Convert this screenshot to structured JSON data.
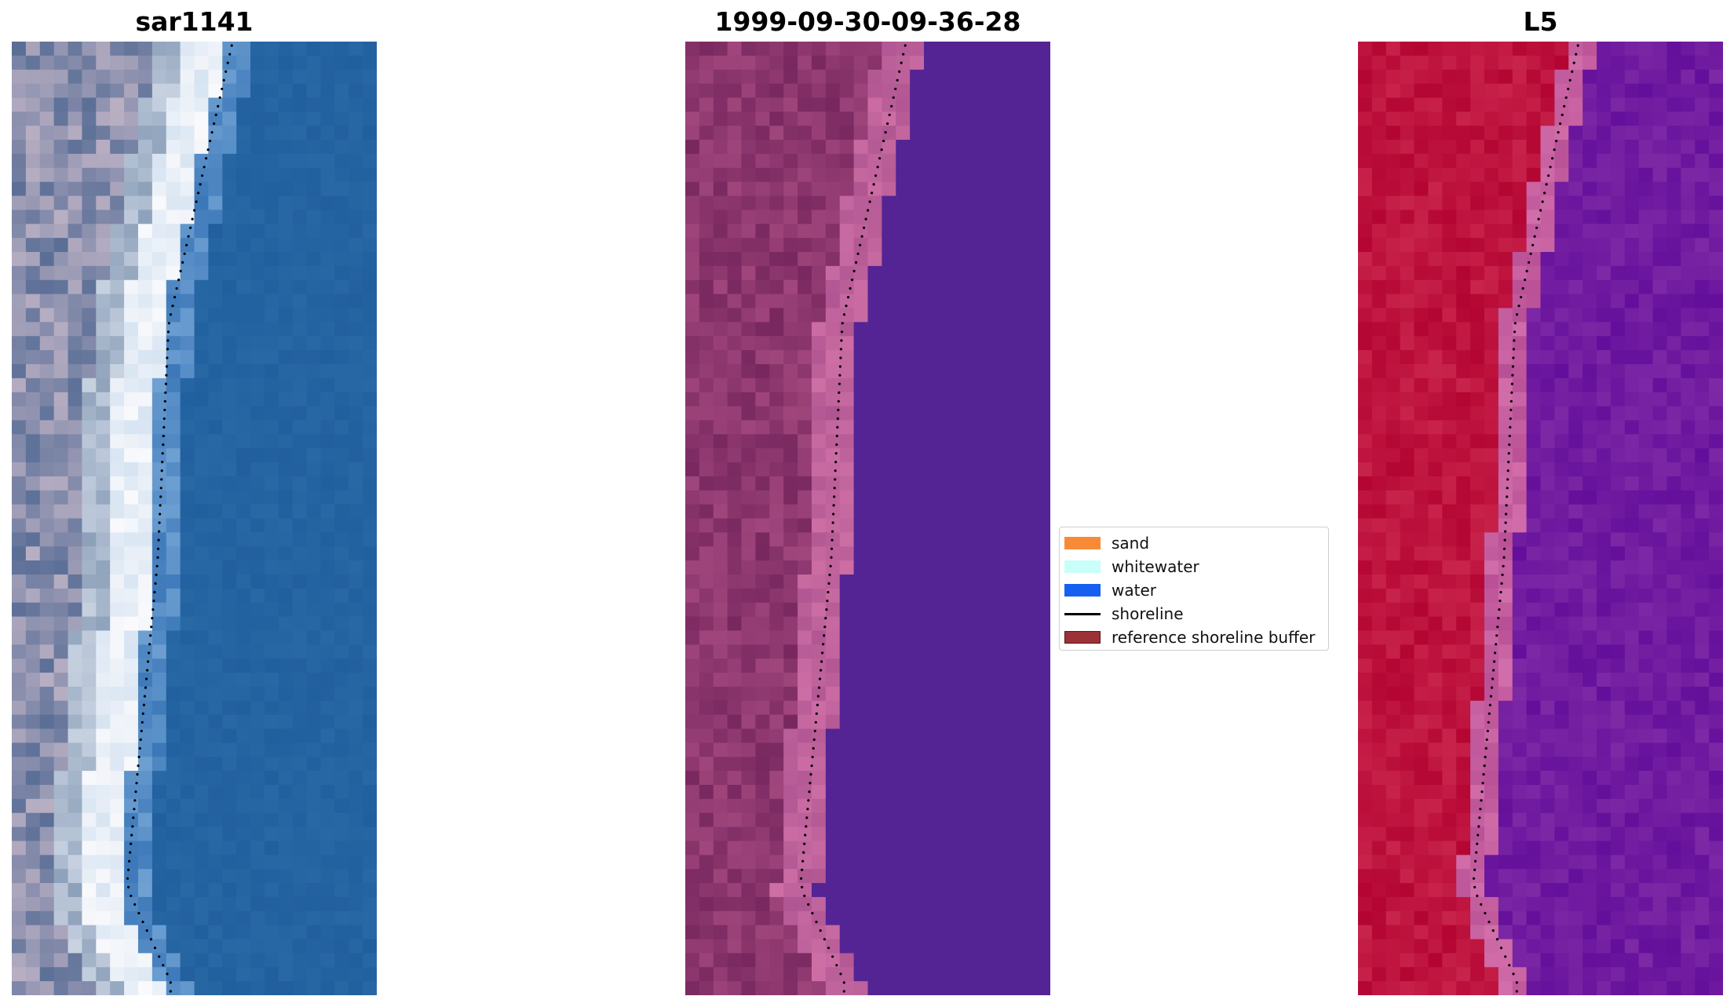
{
  "panels": [
    {
      "title": "sar1141",
      "theme": "rgb"
    },
    {
      "title": "1999-09-30-09-36-28",
      "theme": "class"
    },
    {
      "title": "L5",
      "theme": "index"
    }
  ],
  "legend": {
    "items": [
      {
        "label": "sand",
        "type": "patch",
        "color": "#f88a37",
        "edge": "#f88a37"
      },
      {
        "label": "whitewater",
        "type": "patch",
        "color": "#c8fff8",
        "edge": "#c8fff8"
      },
      {
        "label": "water",
        "type": "patch",
        "color": "#1560f0",
        "edge": "#1560f0"
      },
      {
        "label": "shoreline",
        "type": "line",
        "color": "#000000"
      },
      {
        "label": "reference shoreline buffer",
        "type": "patch",
        "color": "#9a3238",
        "edge": "#5a1418"
      }
    ]
  },
  "colors": {
    "water_class": "#542495",
    "shoreline": "#000000"
  }
}
